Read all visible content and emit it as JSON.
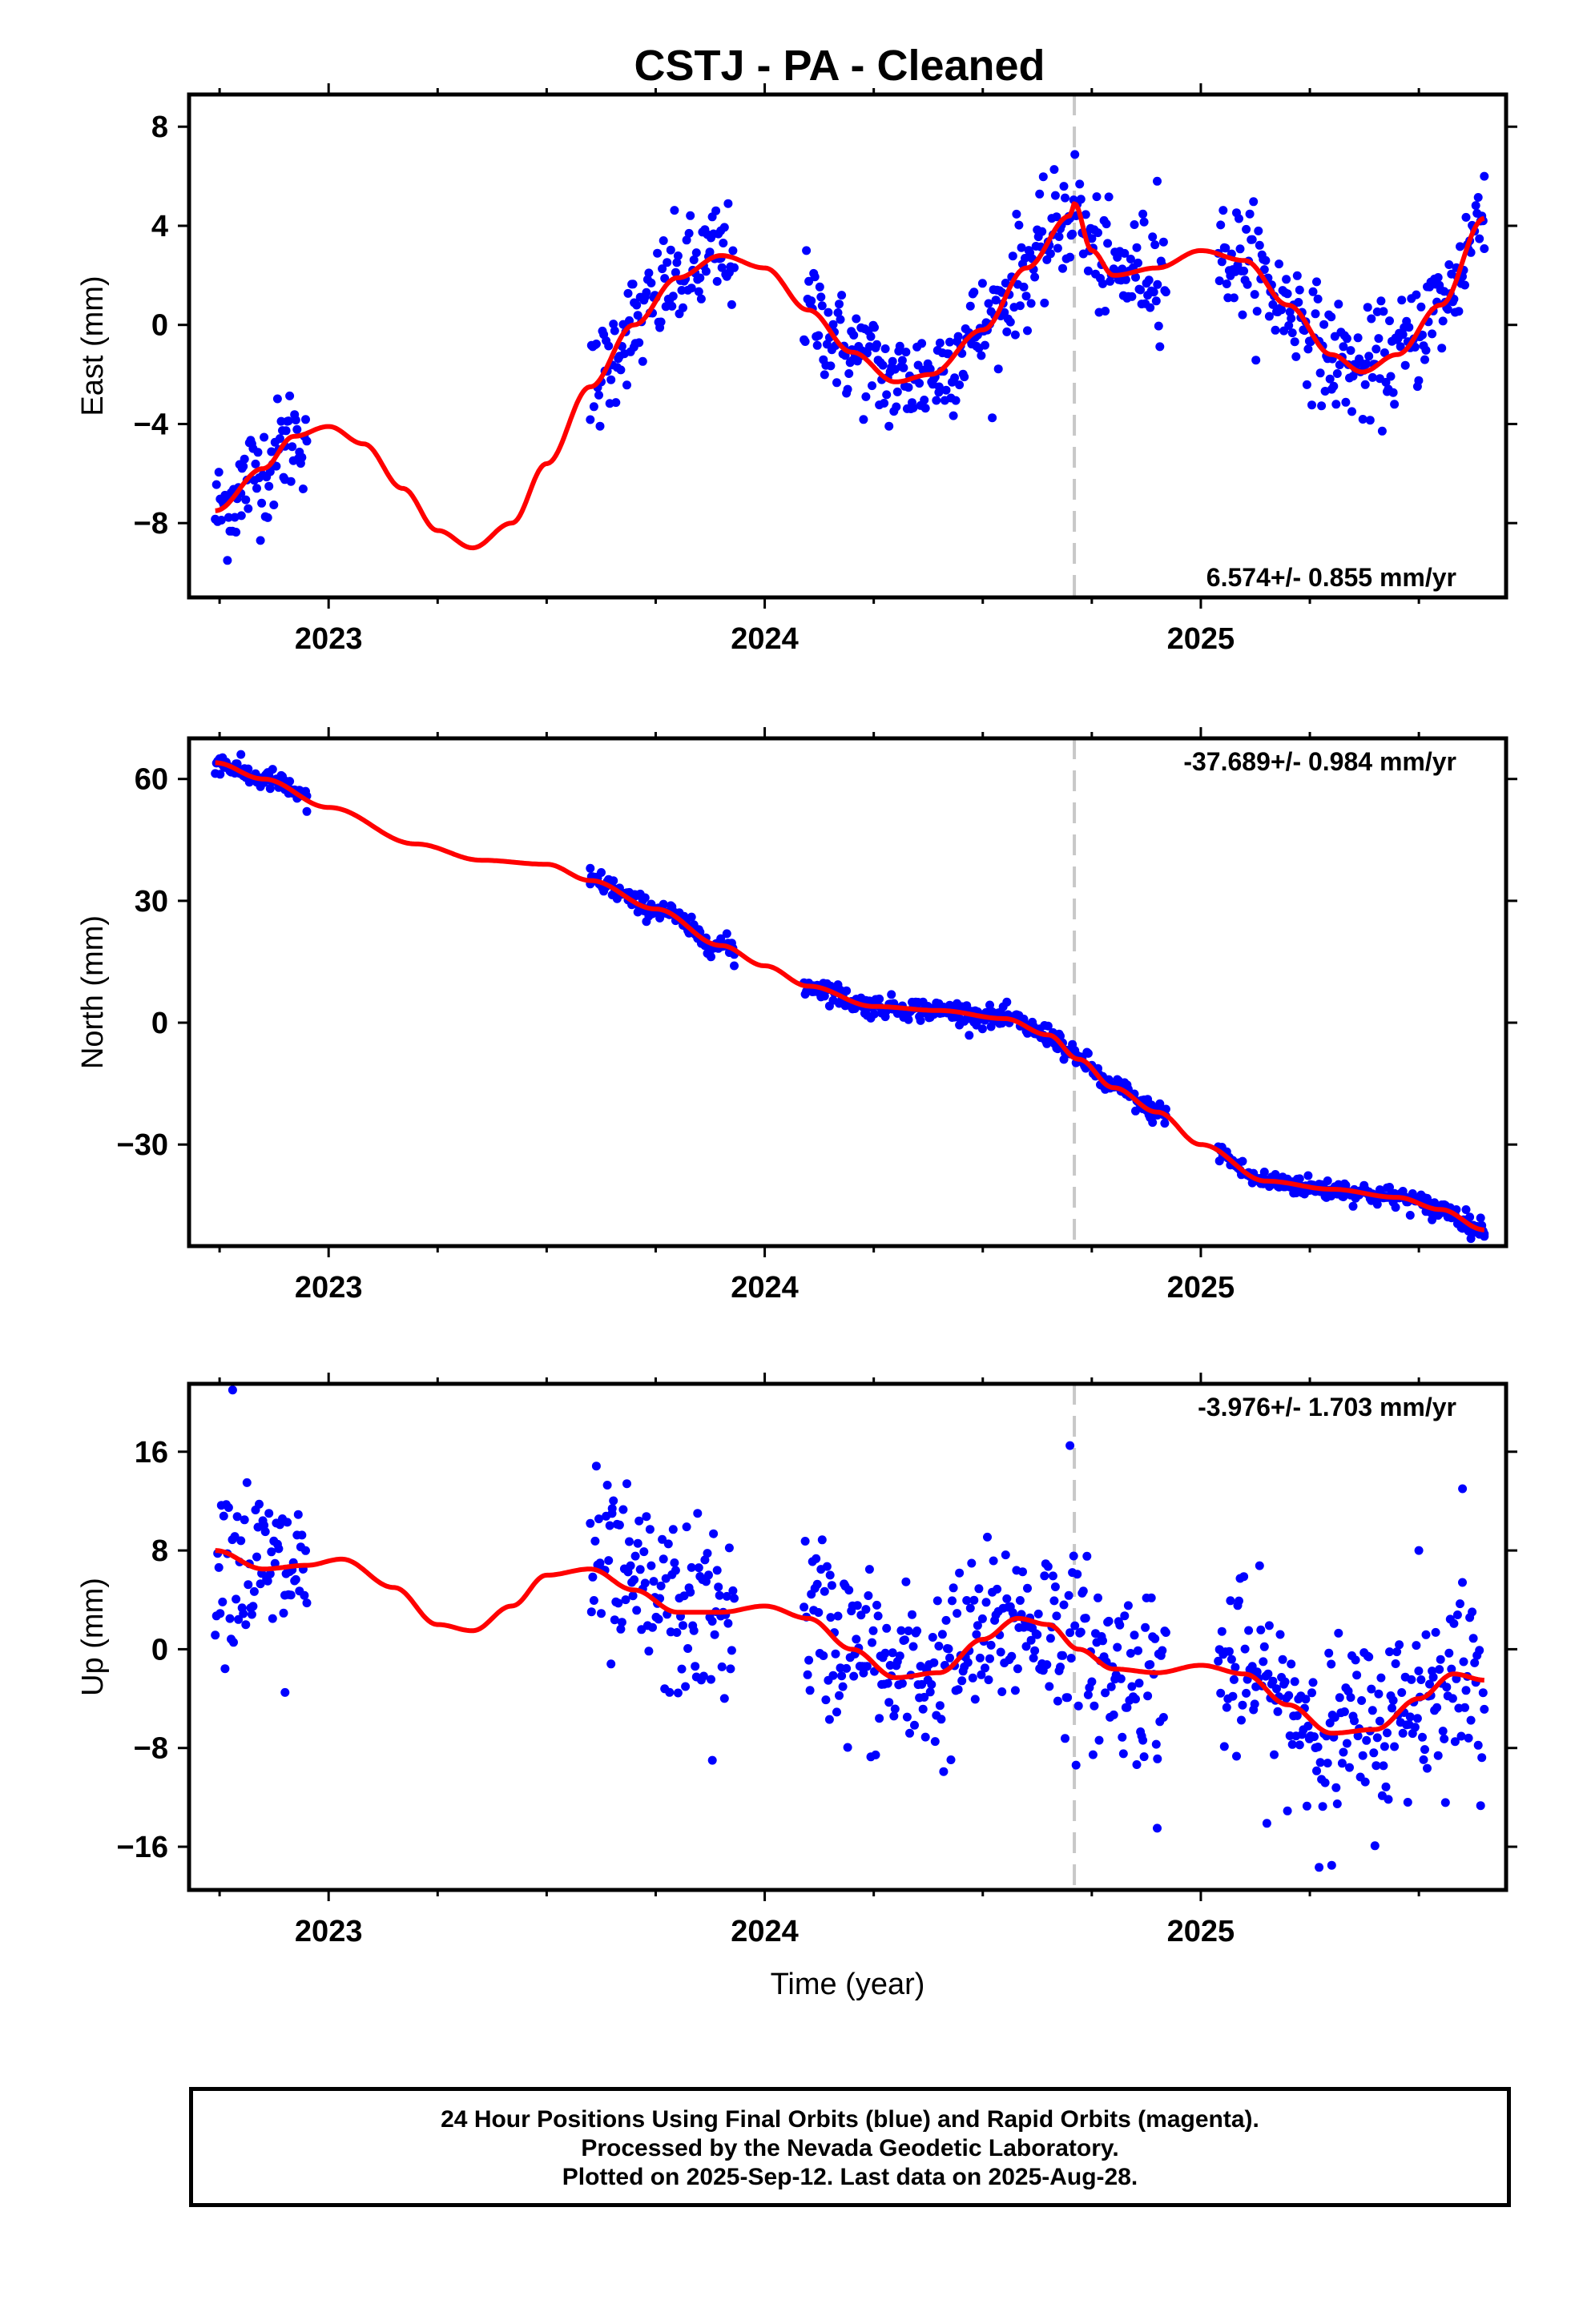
{
  "title": "CSTJ  - PA - Cleaned",
  "x_axis_title": "Time (year)",
  "footer": [
    "24 Hour Positions Using Final Orbits (blue) and Rapid Orbits (magenta).",
    "Processed by the Nevada Geodetic Laboratory.",
    "Plotted on 2025-Sep-12. Last data on 2025-Aug-28."
  ],
  "colors": {
    "points": "#0000ff",
    "fit": "#ff0000",
    "marker_line": "#c8c8c8",
    "frame": "#000000"
  },
  "chart_data": [
    {
      "type": "scatter",
      "ylabel": "East (mm)",
      "rate_label": "6.574+/- 0.855 mm/yr",
      "xlim": [
        2022.68,
        2025.7
      ],
      "ylim": [
        -11,
        9.3
      ],
      "x_ticks": [
        "2023",
        "2024",
        "2025"
      ],
      "y_ticks": [
        -8,
        -4,
        0,
        4,
        8
      ],
      "y_tick_labels": [
        "−8",
        "−4",
        "0",
        "4",
        "8"
      ],
      "event_line_x": 2024.71,
      "data_segments": [
        [
          2022.74,
          2022.95
        ],
        [
          2023.6,
          2023.93
        ],
        [
          2024.09,
          2024.92
        ],
        [
          2025.04,
          2025.65
        ]
      ],
      "fit": {
        "x": [
          2022.74,
          2022.85,
          2022.92,
          2023.0,
          2023.08,
          2023.17,
          2023.25,
          2023.33,
          2023.42,
          2023.5,
          2023.6,
          2023.7,
          2023.8,
          2023.9,
          2024.0,
          2024.1,
          2024.2,
          2024.3,
          2024.38,
          2024.5,
          2024.6,
          2024.7,
          2024.71,
          2024.75,
          2024.8,
          2024.9,
          2025.0,
          2025.1,
          2025.2,
          2025.3,
          2025.37,
          2025.45,
          2025.55,
          2025.65
        ],
        "y": [
          -7.5,
          -5.8,
          -4.5,
          -4.1,
          -4.8,
          -6.6,
          -8.3,
          -9.0,
          -8.0,
          -5.6,
          -2.5,
          0.0,
          1.9,
          2.8,
          2.3,
          0.6,
          -1.1,
          -2.3,
          -2.0,
          -0.2,
          2.3,
          4.4,
          4.9,
          3.0,
          2.0,
          2.3,
          3.0,
          2.6,
          0.8,
          -1.2,
          -1.9,
          -1.2,
          0.8,
          4.3
        ]
      },
      "scatter_sd": 1.1,
      "points_sample": [
        [
          2022.8,
          -7.7
        ],
        [
          2022.9,
          -4.9
        ],
        [
          2023.7,
          -0.9
        ],
        [
          2023.9,
          2.7
        ],
        [
          2024.2,
          -1.0
        ],
        [
          2024.4,
          -2.5
        ],
        [
          2024.7,
          4.3
        ],
        [
          2024.9,
          5.8
        ],
        [
          2025.3,
          -2.6
        ],
        [
          2025.65,
          6.0
        ]
      ]
    },
    {
      "type": "scatter",
      "ylabel": "North (mm)",
      "rate_label": "-37.689+/- 0.984 mm/yr",
      "xlim": [
        2022.68,
        2025.7
      ],
      "ylim": [
        -55,
        70
      ],
      "x_ticks": [
        "2023",
        "2024",
        "2025"
      ],
      "y_ticks": [
        -30,
        0,
        30,
        60
      ],
      "y_tick_labels": [
        "−30",
        "0",
        "30",
        "60"
      ],
      "event_line_x": 2024.71,
      "data_segments": [
        [
          2022.74,
          2022.95
        ],
        [
          2023.6,
          2023.93
        ],
        [
          2024.09,
          2024.92
        ],
        [
          2025.04,
          2025.65
        ]
      ],
      "fit": {
        "x": [
          2022.74,
          2022.85,
          2023.0,
          2023.2,
          2023.35,
          2023.5,
          2023.6,
          2023.75,
          2023.9,
          2024.0,
          2024.1,
          2024.25,
          2024.4,
          2024.55,
          2024.65,
          2024.72,
          2024.8,
          2024.9,
          2025.0,
          2025.15,
          2025.3,
          2025.45,
          2025.55,
          2025.65
        ],
        "y": [
          64,
          60,
          53,
          44,
          40,
          39,
          35,
          28,
          19,
          14,
          9,
          4,
          3,
          1,
          -3,
          -9,
          -16,
          -22,
          -30,
          -39,
          -41,
          -43,
          -46,
          -51
        ]
      },
      "scatter_sd": 1.3,
      "points_sample": [
        [
          2022.75,
          65
        ],
        [
          2022.95,
          52
        ],
        [
          2023.6,
          38
        ],
        [
          2023.93,
          14
        ],
        [
          2024.1,
          9
        ],
        [
          2024.5,
          2
        ],
        [
          2024.92,
          -23
        ],
        [
          2025.05,
          -33
        ],
        [
          2025.4,
          -43
        ],
        [
          2025.65,
          -52
        ]
      ]
    },
    {
      "type": "scatter",
      "ylabel": "Up (mm)",
      "rate_label": "-3.976+/- 1.703 mm/yr",
      "xlim": [
        2022.68,
        2025.7
      ],
      "ylim": [
        -19.5,
        21.5
      ],
      "x_ticks": [
        "2023",
        "2024",
        "2025"
      ],
      "y_ticks": [
        -16,
        -8,
        0,
        8,
        16
      ],
      "y_tick_labels": [
        "−16",
        "−8",
        "0",
        "8",
        "16"
      ],
      "event_line_x": 2024.71,
      "data_segments": [
        [
          2022.74,
          2022.95
        ],
        [
          2023.6,
          2023.93
        ],
        [
          2024.09,
          2024.92
        ],
        [
          2025.04,
          2025.65
        ]
      ],
      "fit": {
        "x": [
          2022.74,
          2022.85,
          2022.95,
          2023.03,
          2023.15,
          2023.25,
          2023.33,
          2023.42,
          2023.5,
          2023.6,
          2023.7,
          2023.8,
          2023.9,
          2024.0,
          2024.1,
          2024.2,
          2024.3,
          2024.4,
          2024.5,
          2024.58,
          2024.65,
          2024.72,
          2024.8,
          2024.9,
          2025.0,
          2025.1,
          2025.2,
          2025.3,
          2025.4,
          2025.5,
          2025.58,
          2025.65
        ],
        "y": [
          8.0,
          6.5,
          6.8,
          7.3,
          5.0,
          2.0,
          1.5,
          3.5,
          6.0,
          6.5,
          4.8,
          3.0,
          3.0,
          3.5,
          2.5,
          0.0,
          -2.3,
          -1.9,
          0.8,
          2.5,
          2.0,
          0.0,
          -1.6,
          -1.9,
          -1.3,
          -2.0,
          -4.5,
          -6.8,
          -6.5,
          -4.0,
          -2.0,
          -2.5
        ]
      },
      "scatter_sd": 3.6,
      "points_sample": [
        [
          2022.78,
          21
        ],
        [
          2022.9,
          -3.5
        ],
        [
          2023.65,
          11
        ],
        [
          2023.88,
          -9
        ],
        [
          2024.15,
          6
        ],
        [
          2024.7,
          16.5
        ],
        [
          2024.9,
          -14.5
        ],
        [
          2025.3,
          -17.5
        ],
        [
          2025.5,
          8
        ],
        [
          2025.6,
          13
        ]
      ]
    }
  ]
}
